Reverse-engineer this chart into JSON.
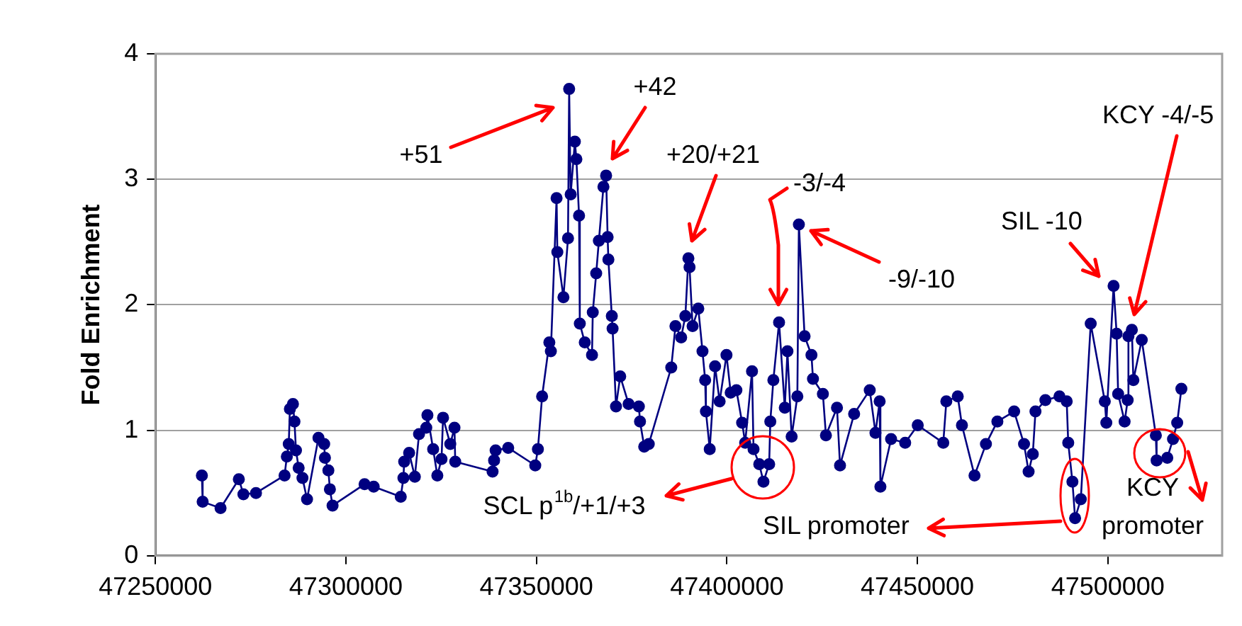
{
  "chart_data": {
    "type": "line",
    "ylabel": "Fold Enrichment",
    "xlim": [
      47250000,
      47530000
    ],
    "xticks": [
      47250000,
      47300000,
      47350000,
      47400000,
      47450000,
      47500000
    ],
    "ylim": [
      0,
      4
    ],
    "yticks": [
      0,
      1,
      2,
      3,
      4
    ],
    "grid": "y",
    "legend": false,
    "marker": "circle",
    "line_style": "solid",
    "series": [
      {
        "color": "#000080",
        "x": [
          47262200,
          47262400,
          47267100,
          47271900,
          47273100,
          47276400,
          47283900,
          47284500,
          47285000,
          47285300,
          47286100,
          47286500,
          47286900,
          47287600,
          47288600,
          47289800,
          47292800,
          47294300,
          47294500,
          47295400,
          47295800,
          47296500,
          47304900,
          47307300,
          47314400,
          47315100,
          47315300,
          47316600,
          47318100,
          47319200,
          47321100,
          47321400,
          47322900,
          47324000,
          47325100,
          47325500,
          47327400,
          47328500,
          47328700,
          47338500,
          47338900,
          47339300,
          47342600,
          47349700,
          47350400,
          47351500,
          47353400,
          47353800,
          47355300,
          47355500,
          47357100,
          47358300,
          47358600,
          47359000,
          47360100,
          47360500,
          47361200,
          47361400,
          47362700,
          47364600,
          47364800,
          47365700,
          47366400,
          47367600,
          47368300,
          47368700,
          47368900,
          47369800,
          47370000,
          47370900,
          47372000,
          47374200,
          47376900,
          47377200,
          47378300,
          47379500,
          47385400,
          47386500,
          47388000,
          47389100,
          47389900,
          47390200,
          47391000,
          47392500,
          47393600,
          47394300,
          47394500,
          47395500,
          47396900,
          47398100,
          47399900,
          47401000,
          47402500,
          47404000,
          47404800,
          47406600,
          47407000,
          47408500,
          47409600,
          47411100,
          47411400,
          47412200,
          47413700,
          47415200,
          47415900,
          47417000,
          47418500,
          47418900,
          47420400,
          47422200,
          47422600,
          47425200,
          47426000,
          47428900,
          47429700,
          47433400,
          47437500,
          47439000,
          47440100,
          47440300,
          47443100,
          47446800,
          47450100,
          47456800,
          47457600,
          47460600,
          47461700,
          47465000,
          47468000,
          47471000,
          47475400,
          47478000,
          47479200,
          47480300,
          47481000,
          47483600,
          47487300,
          47489200,
          47489600,
          47490700,
          47491400,
          47492900,
          47495500,
          47499200,
          47499600,
          47501500,
          47502300,
          47502700,
          47504400,
          47505200,
          47505400,
          47506300,
          47506700,
          47508900,
          47512600,
          47512800,
          47515600,
          47517100,
          47518200,
          47519300
        ],
        "values": [
          0.64,
          0.43,
          0.38,
          0.61,
          0.49,
          0.5,
          0.64,
          0.79,
          0.89,
          1.17,
          1.21,
          1.07,
          0.84,
          0.7,
          0.62,
          0.45,
          0.94,
          0.89,
          0.78,
          0.68,
          0.53,
          0.4,
          0.57,
          0.55,
          0.47,
          0.62,
          0.75,
          0.82,
          0.63,
          0.97,
          1.02,
          1.12,
          0.85,
          0.64,
          0.77,
          1.1,
          0.89,
          1.02,
          0.75,
          0.67,
          0.76,
          0.84,
          0.86,
          0.72,
          0.85,
          1.27,
          1.7,
          1.63,
          2.85,
          2.42,
          2.06,
          2.53,
          3.72,
          2.88,
          3.3,
          3.16,
          2.71,
          1.85,
          1.7,
          1.6,
          1.94,
          2.25,
          2.51,
          2.94,
          3.03,
          2.54,
          2.36,
          1.91,
          1.81,
          1.19,
          1.43,
          1.21,
          1.19,
          1.07,
          0.87,
          0.89,
          1.5,
          1.83,
          1.74,
          1.91,
          2.37,
          2.3,
          1.83,
          1.97,
          1.63,
          1.4,
          1.15,
          0.85,
          1.51,
          1.23,
          1.6,
          1.3,
          1.32,
          1.06,
          0.9,
          1.47,
          0.85,
          0.73,
          0.59,
          0.73,
          1.07,
          1.4,
          1.86,
          1.18,
          1.63,
          0.95,
          1.27,
          2.64,
          1.75,
          1.6,
          1.41,
          1.29,
          0.96,
          1.18,
          0.72,
          1.13,
          1.32,
          0.98,
          1.23,
          0.55,
          0.93,
          0.9,
          1.04,
          0.9,
          1.23,
          1.27,
          1.04,
          0.64,
          0.89,
          1.07,
          1.15,
          0.89,
          0.67,
          0.81,
          1.15,
          1.24,
          1.27,
          1.23,
          0.9,
          0.59,
          0.3,
          0.45,
          1.85,
          1.23,
          1.06,
          2.15,
          1.77,
          1.29,
          1.07,
          1.24,
          1.75,
          1.8,
          1.4,
          1.72,
          0.96,
          0.76,
          0.78,
          0.93,
          1.06,
          1.33
        ]
      }
    ],
    "annotations": [
      "+51",
      "+42",
      "+20/+21",
      "-3/-4",
      "-9/-10",
      "SIL -10",
      "KCY -4/-5",
      "SCL p$^{1b}$/+1/+3",
      "SIL promoter",
      "KCY promoter"
    ]
  }
}
